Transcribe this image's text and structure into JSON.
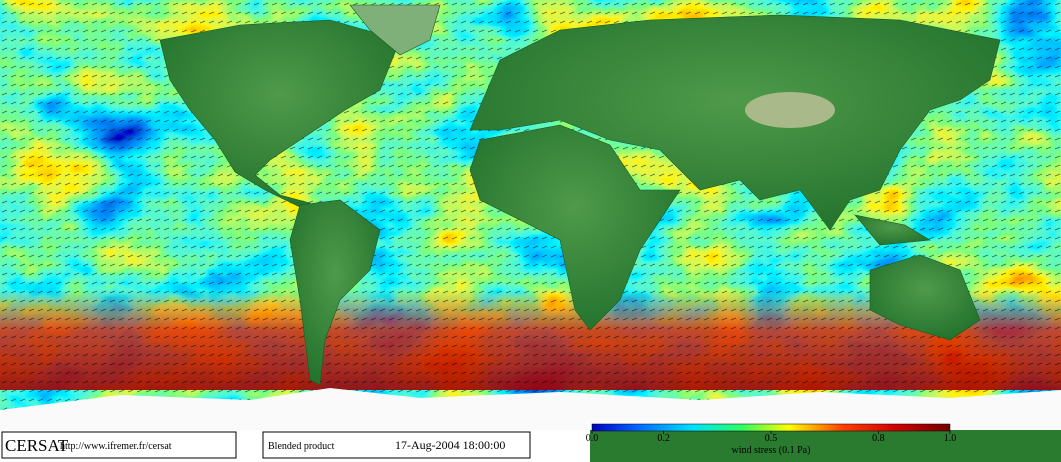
{
  "footer": {
    "logo": "CERSAT",
    "url": "http://www.ifremer.fr/cersat",
    "product": "Blended product",
    "date": "17-Aug-2004 18:00:00"
  },
  "colorbar": {
    "label": "wind stress (0.1 Pa)",
    "range": [
      0,
      1
    ],
    "ticks": [
      {
        "value": 0,
        "label": "0.0"
      },
      {
        "value": 0.2,
        "label": "0.2"
      },
      {
        "value": 0.5,
        "label": "0.5"
      },
      {
        "value": 0.8,
        "label": "0.8"
      },
      {
        "value": 1,
        "label": "1.0"
      }
    ]
  }
}
